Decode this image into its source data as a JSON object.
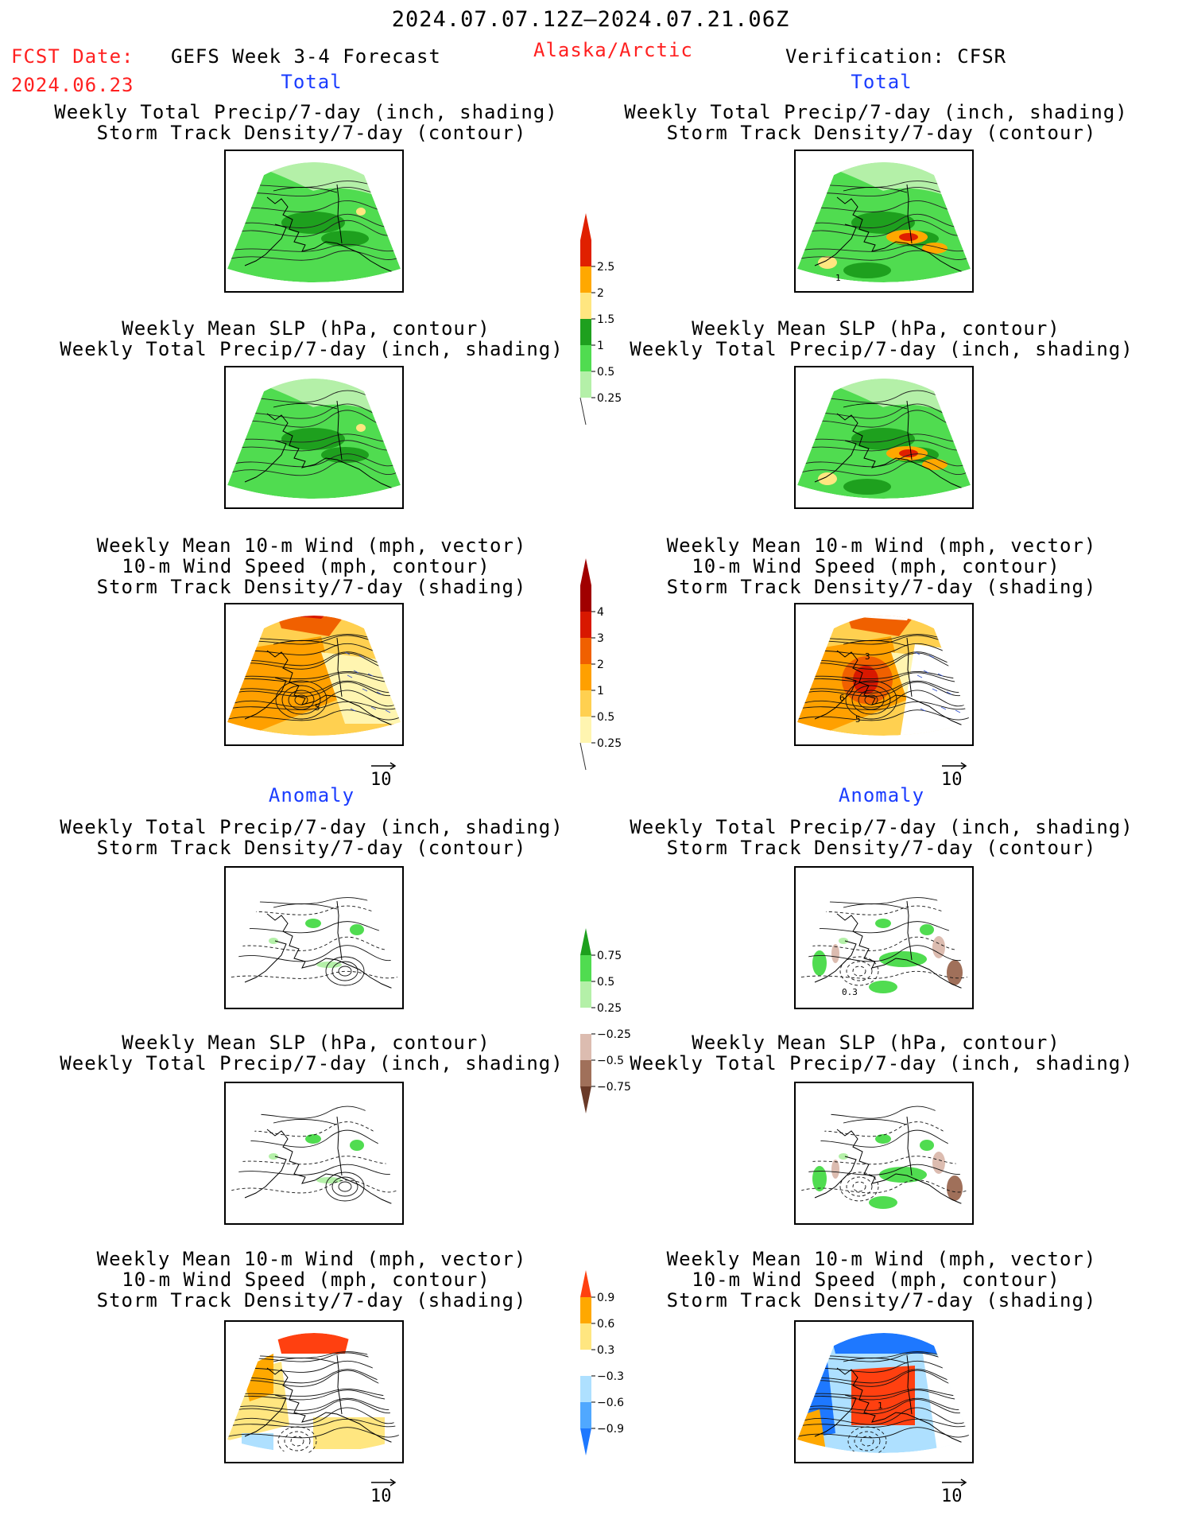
{
  "header": {
    "time_range": "2024.07.07.12Z–2024.07.21.06Z",
    "fcst_label": "FCST Date:",
    "fcst_date": "2024.06.23",
    "forecast_name": "GEFS Week 3-4 Forecast",
    "region": "Alaska/Arctic",
    "verification": "Verification: CFSR"
  },
  "sections": {
    "total": "Total",
    "anomaly": "Anomaly"
  },
  "panel_titles": {
    "precip_storm": [
      "Weekly Total Precip/7-day (inch, shading)",
      "Storm Track Density/7-day (contour)"
    ],
    "slp_precip": [
      "Weekly Mean SLP (hPa, contour)",
      "Weekly Total Precip/7-day (inch, shading)"
    ],
    "wind_storm": [
      "Weekly Mean 10-m Wind (mph, vector)",
      "10-m Wind Speed (mph, contour)",
      "Storm Track Density/7-day (shading)"
    ]
  },
  "vector_ref": "10",
  "colors": {
    "precip": [
      "#b4f0a8",
      "#50dc50",
      "#1ea01e",
      "#ffe680",
      "#ffa800",
      "#e02000"
    ],
    "storm": [
      "#fff5b0",
      "#ffd050",
      "#ffa000",
      "#f06000",
      "#d81800",
      "#a00000"
    ],
    "anom_precip": [
      "#6a3a28",
      "#a0705a",
      "#dcbcb0",
      "#ffffff",
      "#b4f0a8",
      "#50dc50",
      "#1ea01e"
    ],
    "anom_storm": [
      "#1e78ff",
      "#50a8ff",
      "#aee0ff",
      "#ffffff",
      "#ffe680",
      "#ffa800",
      "#ff4010"
    ]
  },
  "chart_data": [
    {
      "type": "heatmap",
      "name": "precip_total_colorbar",
      "ticks": [
        "2.5",
        "2",
        "1.5",
        "1",
        "0.5",
        "0.25"
      ]
    },
    {
      "type": "heatmap",
      "name": "storm_total_colorbar",
      "ticks": [
        "4",
        "3",
        "2",
        "1",
        "0.5",
        "0.25"
      ]
    },
    {
      "type": "heatmap",
      "name": "precip_anomaly_colorbar",
      "ticks": [
        "0.75",
        "0.5",
        "0.25",
        "−0.25",
        "−0.5",
        "−0.75"
      ]
    },
    {
      "type": "heatmap",
      "name": "storm_anomaly_colorbar",
      "ticks": [
        "0.9",
        "0.6",
        "0.3",
        "−0.3",
        "−0.6",
        "−0.9"
      ]
    }
  ],
  "map_labels": {
    "fc_wind_total": "5",
    "ob_precip_total": "1",
    "ob_wind_total": [
      "3",
      "6",
      "5"
    ],
    "ob_precip_anom": "0.3",
    "ob_wind_anom": "1"
  }
}
